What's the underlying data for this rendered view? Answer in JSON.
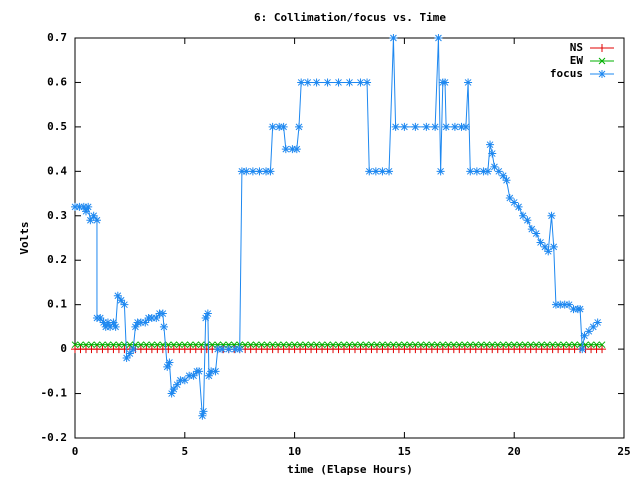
{
  "chart_data": {
    "type": "line",
    "title": "6: Collimation/focus vs. Time",
    "xlabel": "time (Elapse Hours)",
    "ylabel": "Volts",
    "xlim": [
      0,
      25
    ],
    "xticks": [
      0,
      5,
      10,
      15,
      20,
      25
    ],
    "ylim": [
      -0.2,
      0.7
    ],
    "yticks": [
      0.7,
      0.6,
      0.5,
      0.4,
      0.3,
      0.2,
      0.1,
      0,
      -0.1,
      -0.2
    ],
    "legend": "top-right",
    "x": [
      0,
      0.25,
      0.5,
      0.75,
      1,
      1.25,
      1.5,
      1.75,
      2,
      2.25,
      2.5,
      2.75,
      3,
      3.25,
      3.5,
      3.75,
      4,
      4.25,
      4.5,
      4.75,
      5,
      5.25,
      5.5,
      5.75,
      6,
      6.25,
      6.5,
      6.75,
      7,
      7.25,
      7.5,
      7.75,
      8,
      8.25,
      8.5,
      8.75,
      9,
      9.25,
      9.5,
      9.75,
      10,
      10.25,
      10.5,
      10.75,
      11,
      11.25,
      11.5,
      11.75,
      12,
      12.25,
      12.5,
      12.75,
      13,
      13.25,
      13.5,
      13.75,
      14,
      14.25,
      14.5,
      14.75,
      15,
      15.25,
      15.5,
      15.75,
      16,
      16.25,
      16.5,
      16.75,
      17,
      17.25,
      17.5,
      17.75,
      18,
      18.25,
      18.5,
      18.75,
      19,
      19.25,
      19.5,
      19.75,
      20,
      20.25,
      20.5,
      20.75,
      21,
      21.25,
      21.5,
      21.75,
      22,
      22.25,
      22.5,
      22.75,
      23,
      23.25,
      23.5,
      23.75,
      24
    ],
    "series": [
      {
        "name": "NS",
        "color": "#e00000",
        "marker": "plus",
        "values": [
          0,
          0,
          0,
          0,
          0,
          0,
          0,
          0,
          0,
          0,
          0,
          0,
          0,
          0,
          0,
          0,
          0,
          0,
          0,
          0,
          0,
          0,
          0,
          0,
          0,
          0,
          0,
          0,
          0,
          0,
          0,
          0,
          0,
          0,
          0,
          0,
          0,
          0,
          0,
          0,
          0,
          0,
          0,
          0,
          0,
          0,
          0,
          0,
          0,
          0,
          0,
          0,
          0,
          0,
          0,
          0,
          0,
          0,
          0,
          0,
          0,
          0,
          0,
          0,
          0,
          0,
          0,
          0,
          0,
          0,
          0,
          0,
          0,
          0,
          0,
          0,
          0,
          0,
          0,
          0,
          0,
          0,
          0,
          0,
          0,
          0,
          0,
          0,
          0,
          0,
          0,
          0,
          0,
          0,
          0,
          0,
          0
        ]
      },
      {
        "name": "EW",
        "color": "#00b000",
        "marker": "cross",
        "values": [
          0.01,
          0.01,
          0.01,
          0.01,
          0.01,
          0.01,
          0.01,
          0.01,
          0.01,
          0.01,
          0.01,
          0.01,
          0.01,
          0.01,
          0.01,
          0.01,
          0.01,
          0.01,
          0.01,
          0.01,
          0.01,
          0.01,
          0.01,
          0.01,
          0.01,
          0.01,
          0.01,
          0.01,
          0.01,
          0.01,
          0.01,
          0.01,
          0.01,
          0.01,
          0.01,
          0.01,
          0.01,
          0.01,
          0.01,
          0.01,
          0.01,
          0.01,
          0.01,
          0.01,
          0.01,
          0.01,
          0.01,
          0.01,
          0.01,
          0.01,
          0.01,
          0.01,
          0.01,
          0.01,
          0.01,
          0.01,
          0.01,
          0.01,
          0.01,
          0.01,
          0.01,
          0.01,
          0.01,
          0.01,
          0.01,
          0.01,
          0.01,
          0.01,
          0.01,
          0.01,
          0.01,
          0.01,
          0.01,
          0.01,
          0.01,
          0.01,
          0.01,
          0.01,
          0.01,
          0.01,
          0.01,
          0.01,
          0.01,
          0.01,
          0.01,
          0.01,
          0.01,
          0.01,
          0.01,
          0.01,
          0.01,
          0.01,
          0.01,
          0.01,
          0.01,
          0.01,
          0.01
        ]
      },
      {
        "name": "focus",
        "color": "#1e88f0",
        "marker": "star",
        "x": [
          0,
          0.2,
          0.4,
          0.5,
          0.6,
          0.7,
          0.85,
          1,
          1,
          1.15,
          1.3,
          1.4,
          1.5,
          1.6,
          1.75,
          1.85,
          1.95,
          2.1,
          2.25,
          2.35,
          2.5,
          2.65,
          2.75,
          2.85,
          3,
          3.2,
          3.35,
          3.5,
          3.7,
          3.85,
          4,
          4.05,
          4.2,
          4.3,
          4.4,
          4.5,
          4.65,
          4.8,
          5,
          5.2,
          5.4,
          5.55,
          5.65,
          5.8,
          5.85,
          5.95,
          6.05,
          6.1,
          6.2,
          6.4,
          6.5,
          6.7,
          7,
          7.3,
          7.5,
          7.6,
          7.8,
          8.1,
          8.4,
          8.7,
          8.9,
          9,
          9.3,
          9.5,
          9.6,
          9.9,
          10.1,
          10.2,
          10.3,
          10.6,
          11,
          11.5,
          12,
          12.5,
          13,
          13.3,
          13.4,
          13.7,
          14,
          14.3,
          14.5,
          14.6,
          15,
          15.5,
          16,
          16.4,
          16.55,
          16.65,
          16.75,
          16.85,
          16.9,
          17.3,
          17.6,
          17.8,
          17.9,
          18,
          18.3,
          18.6,
          18.8,
          18.9,
          19,
          19.1,
          19.3,
          19.5,
          19.65,
          19.8,
          20,
          20.2,
          20.4,
          20.6,
          20.8,
          21,
          21.2,
          21.4,
          21.55,
          21.7,
          21.8,
          21.9,
          22.1,
          22.3,
          22.5,
          22.7,
          22.9,
          23,
          23.1,
          23.2,
          23.4,
          23.6,
          23.8
        ],
        "values": [
          0.32,
          0.32,
          0.32,
          0.31,
          0.32,
          0.29,
          0.3,
          0.29,
          0.07,
          0.07,
          0.06,
          0.05,
          0.06,
          0.05,
          0.06,
          0.05,
          0.12,
          0.11,
          0.1,
          -0.02,
          -0.01,
          0,
          0.05,
          0.06,
          0.06,
          0.06,
          0.07,
          0.07,
          0.07,
          0.08,
          0.08,
          0.05,
          -0.04,
          -0.03,
          -0.1,
          -0.09,
          -0.08,
          -0.07,
          -0.07,
          -0.06,
          -0.06,
          -0.05,
          -0.05,
          -0.15,
          -0.14,
          0.07,
          0.08,
          -0.06,
          -0.05,
          -0.05,
          0,
          0,
          0,
          0,
          0,
          0.4,
          0.4,
          0.4,
          0.4,
          0.4,
          0.4,
          0.5,
          0.5,
          0.5,
          0.45,
          0.45,
          0.45,
          0.5,
          0.6,
          0.6,
          0.6,
          0.6,
          0.6,
          0.6,
          0.6,
          0.6,
          0.4,
          0.4,
          0.4,
          0.4,
          0.7,
          0.5,
          0.5,
          0.5,
          0.5,
          0.5,
          0.7,
          0.4,
          0.6,
          0.6,
          0.5,
          0.5,
          0.5,
          0.5,
          0.6,
          0.4,
          0.4,
          0.4,
          0.4,
          0.46,
          0.44,
          0.41,
          0.4,
          0.39,
          0.38,
          0.34,
          0.33,
          0.32,
          0.3,
          0.29,
          0.27,
          0.26,
          0.24,
          0.23,
          0.22,
          0.3,
          0.23,
          0.1,
          0.1,
          0.1,
          0.1,
          0.09,
          0.09,
          0.09,
          0,
          0.03,
          0.04,
          0.05,
          0.06
        ]
      }
    ]
  }
}
